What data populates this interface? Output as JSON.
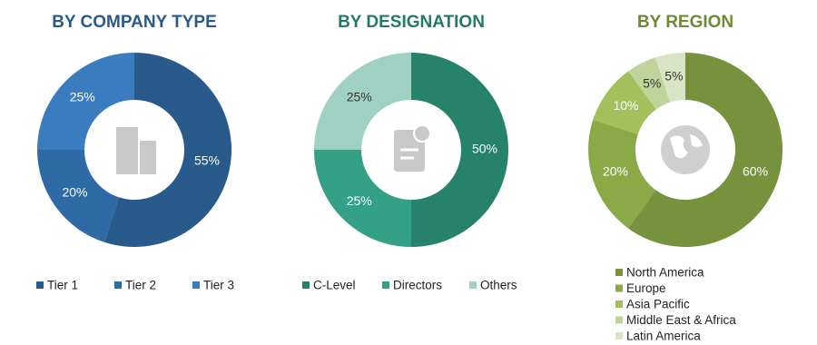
{
  "chart_data": [
    {
      "type": "pie",
      "title": "BY COMPANY TYPE",
      "title_color": "#2a5a8a",
      "categories": [
        "Tier 1",
        "Tier 2",
        "Tier 3"
      ],
      "values": [
        55,
        20,
        25
      ],
      "value_labels": [
        "55%",
        "20%",
        "25%"
      ],
      "colors": [
        "#285a8c",
        "#2e6aa6",
        "#3a7cc0"
      ],
      "legend": "horizontal"
    },
    {
      "type": "pie",
      "title": "BY DESIGNATION",
      "title_color": "#237a66",
      "categories": [
        "C-Level",
        "Directors",
        "Others"
      ],
      "values": [
        50,
        25,
        25
      ],
      "value_labels": [
        "50%",
        "25%",
        "25%"
      ],
      "colors": [
        "#26826b",
        "#34a088",
        "#9fd1c3"
      ],
      "legend": "horizontal"
    },
    {
      "type": "pie",
      "title": "BY REGION",
      "title_color": "#6f8a34",
      "categories": [
        "North America",
        "Europe",
        "Asia Pacific",
        "Middle East & Africa",
        "Latin America"
      ],
      "values": [
        60,
        20,
        10,
        5,
        5
      ],
      "value_labels": [
        "60%",
        "20%",
        "10%",
        "5%",
        "5%"
      ],
      "colors": [
        "#76923c",
        "#8aaa48",
        "#a4c05c",
        "#bfd49a",
        "#d9e4c4"
      ],
      "legend": "vertical"
    }
  ]
}
